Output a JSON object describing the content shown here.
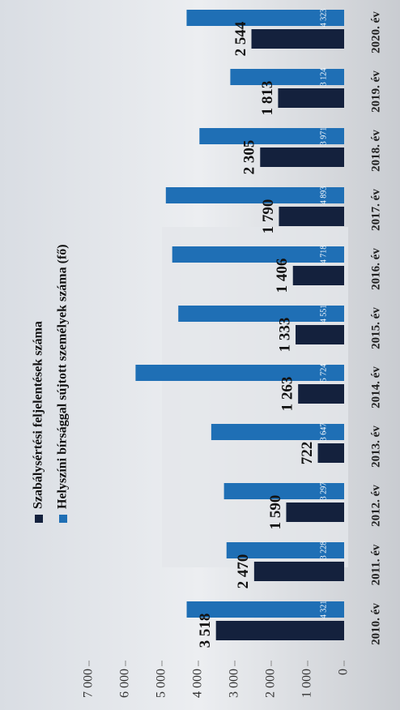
{
  "chart_data": {
    "type": "bar",
    "categories": [
      "2010. év",
      "2011. év",
      "2012. év",
      "2013. év",
      "2014. év",
      "2015. év",
      "2016. év",
      "2017. év",
      "2018. év",
      "2019. év",
      "2020. év"
    ],
    "series": [
      {
        "name": "Szabálysértési feljelentések száma",
        "color": "#14213d",
        "values": [
          3518,
          2470,
          1590,
          722,
          1263,
          1333,
          1406,
          1790,
          2305,
          1813,
          2544
        ],
        "value_labels": [
          "3 518",
          "2 470",
          "1 590",
          "722",
          "1 263",
          "1 333",
          "1 406",
          "1 790",
          "2 305",
          "1 813",
          "2 544"
        ]
      },
      {
        "name": "Helyszíni bírsággal sújtott személyek száma (fő)",
        "color": "#1f6fb5",
        "values": [
          4321,
          3228,
          3297,
          3647,
          5724,
          4551,
          4718,
          4893,
          3971,
          3124,
          4323
        ],
        "value_labels": [
          "4 321",
          "3 228",
          "3 297",
          "3 647",
          "5 724",
          "4 551",
          "4 718",
          "4 893",
          "3 971",
          "3 124",
          "4 323"
        ]
      }
    ],
    "ylim": [
      0,
      7000
    ],
    "yticks": [
      0,
      {
        "value": 1000,
        "label": "1 000"
      },
      {
        "value": 2000,
        "label": "2 000"
      },
      {
        "value": 3000,
        "label": "3 000"
      },
      {
        "value": 4000,
        "label": "4 000"
      },
      {
        "value": 5000,
        "label": "5 000"
      },
      {
        "value": 6000,
        "label": "6 000"
      },
      {
        "value": 7000,
        "label": "7 000"
      }
    ],
    "grid": false
  }
}
